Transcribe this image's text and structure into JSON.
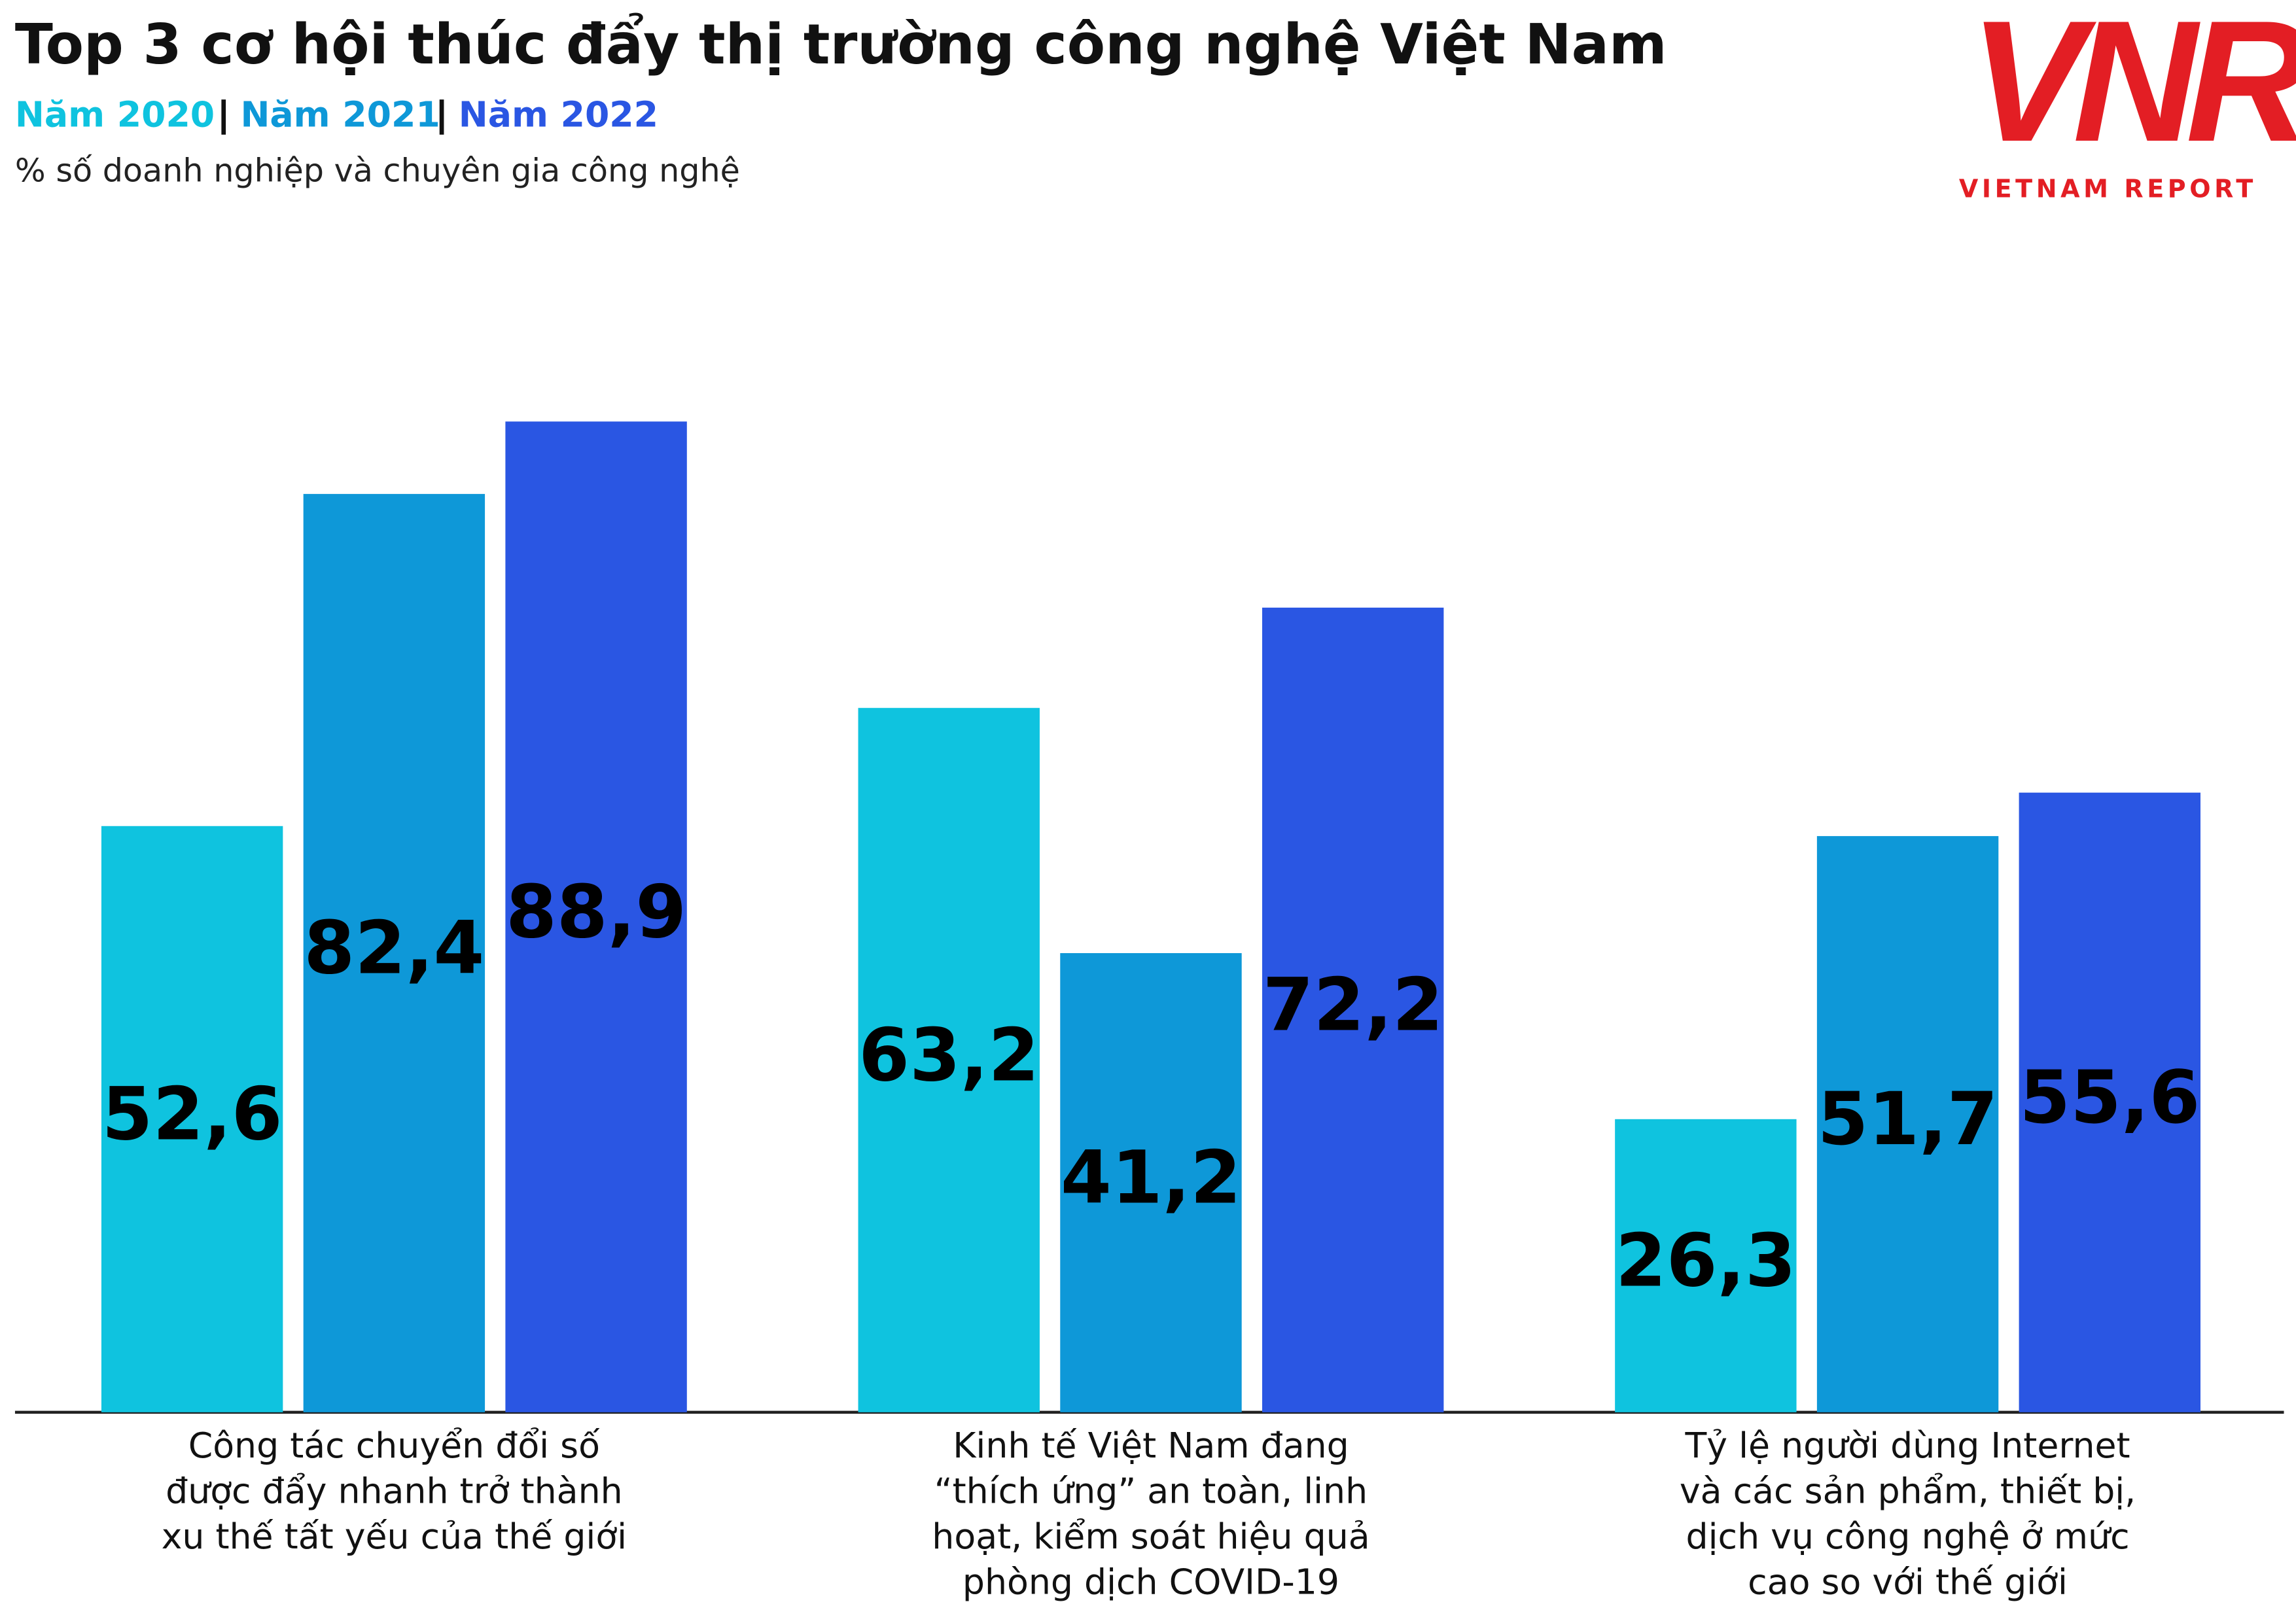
{
  "chart_data": {
    "type": "bar",
    "title": "Top 3 cơ hội thúc đẩy thị trường công nghệ Việt Nam",
    "subtitle": "% số doanh nghiệp và chuyên gia công nghệ",
    "categories": [
      "Công tác chuyển đổi số\nđược đẩy nhanh trở thành\nxu thế tất yếu của thế giới",
      "Kinh tế Việt Nam đang\n“thích ứng” an toàn, linh\nhoạt, kiểm soát hiệu quả\nphòng dịch COVID-19",
      "Tỷ lệ người dùng Internet\nvà các sản phẩm, thiết bị,\ndịch vụ công nghệ ở mức\ncao so với thế giới"
    ],
    "series": [
      {
        "name": "Năm 2020",
        "color": "#0fc3df",
        "values": [
          52.6,
          63.2,
          26.3
        ],
        "value_labels": [
          "52,6",
          "63,2",
          "26,3"
        ]
      },
      {
        "name": "Năm 2021",
        "color": "#0e98d8",
        "values": [
          82.4,
          41.2,
          51.7
        ],
        "value_labels": [
          "82,4",
          "41,2",
          "51,7"
        ]
      },
      {
        "name": "Năm 2022",
        "color": "#2a56e3",
        "values": [
          88.9,
          72.2,
          55.6
        ],
        "value_labels": [
          "88,9",
          "72,2",
          "55,6"
        ]
      }
    ]
  },
  "logo": {
    "mark": "VNR",
    "text": "VIETNAM REPORT"
  }
}
